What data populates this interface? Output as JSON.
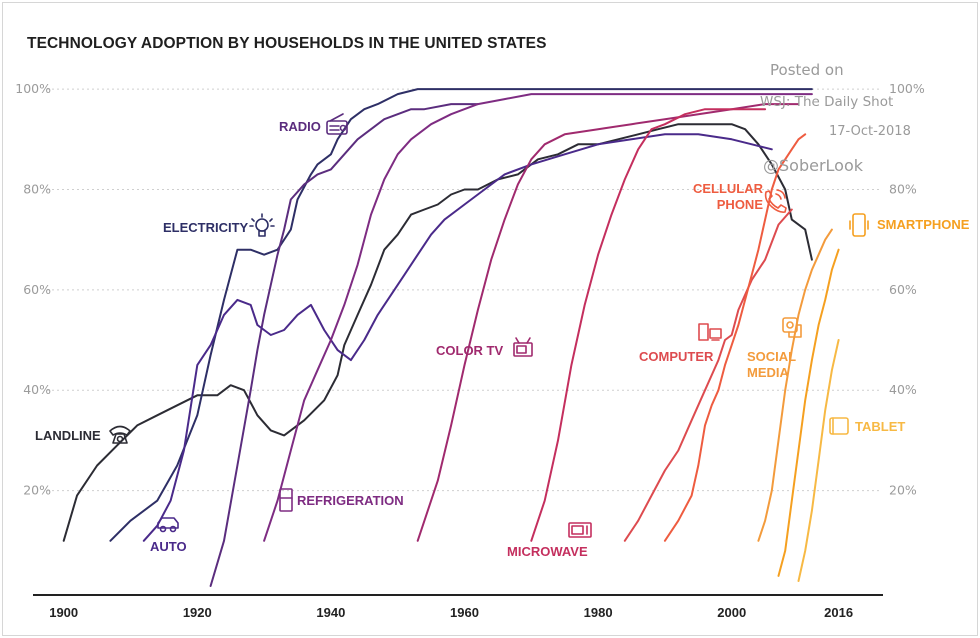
{
  "chart_data": {
    "type": "line",
    "title": "TECHNOLOGY ADOPTION BY HOUSEHOLDS IN THE UNITED STATES",
    "xlabel": "",
    "ylabel": "",
    "xlim": [
      1899,
      2021
    ],
    "ylim": [
      0,
      104
    ],
    "grid": true,
    "legend": "none",
    "x_ticks": [
      {
        "value": 1900,
        "label": "1900"
      },
      {
        "value": 1920,
        "label": "1920"
      },
      {
        "value": 1940,
        "label": "1940"
      },
      {
        "value": 1960,
        "label": "1960"
      },
      {
        "value": 1980,
        "label": "1980"
      },
      {
        "value": 2000,
        "label": "2000"
      },
      {
        "value": 2016,
        "label": "2016"
      }
    ],
    "y_ticks_left": [
      {
        "value": 20,
        "label": "20%"
      },
      {
        "value": 40,
        "label": "40%"
      },
      {
        "value": 60,
        "label": "60%"
      },
      {
        "value": 80,
        "label": "80%"
      },
      {
        "value": 100,
        "label": "100%"
      }
    ],
    "y_ticks_right": [
      {
        "value": 20,
        "label": "20%"
      },
      {
        "value": 40,
        "label": "40%"
      },
      {
        "value": 60,
        "label": "60%"
      },
      {
        "value": 80,
        "label": "80%"
      },
      {
        "value": 100,
        "label": "100%"
      }
    ],
    "series": [
      {
        "name": "LANDLINE",
        "color": "#2c2c34",
        "icon": "telephone-icon",
        "points": [
          [
            1900,
            10
          ],
          [
            1902,
            19
          ],
          [
            1905,
            25
          ],
          [
            1908,
            29
          ],
          [
            1911,
            33
          ],
          [
            1914,
            35
          ],
          [
            1917,
            37
          ],
          [
            1920,
            39
          ],
          [
            1923,
            39
          ],
          [
            1925,
            41
          ],
          [
            1927,
            40
          ],
          [
            1929,
            35
          ],
          [
            1931,
            32
          ],
          [
            1933,
            31
          ],
          [
            1936,
            34
          ],
          [
            1939,
            38
          ],
          [
            1941,
            43
          ],
          [
            1942,
            49
          ],
          [
            1944,
            55
          ],
          [
            1946,
            61
          ],
          [
            1948,
            68
          ],
          [
            1950,
            71
          ],
          [
            1952,
            75
          ],
          [
            1954,
            76
          ],
          [
            1956,
            77
          ],
          [
            1958,
            79
          ],
          [
            1960,
            80
          ],
          [
            1962,
            80
          ],
          [
            1965,
            82
          ],
          [
            1968,
            83
          ],
          [
            1971,
            86
          ],
          [
            1974,
            87
          ],
          [
            1977,
            89
          ],
          [
            1980,
            89
          ],
          [
            1983,
            90
          ],
          [
            1986,
            91
          ],
          [
            1989,
            92
          ],
          [
            1992,
            93
          ],
          [
            1995,
            93
          ],
          [
            1998,
            93
          ],
          [
            2000,
            93
          ],
          [
            2002,
            92
          ],
          [
            2004,
            89
          ],
          [
            2006,
            85
          ],
          [
            2008,
            80
          ],
          [
            2009,
            74
          ],
          [
            2011,
            72
          ],
          [
            2012,
            66
          ]
        ]
      },
      {
        "name": "ELECTRICITY",
        "color": "#2e2f66",
        "icon": "lightbulb-icon",
        "points": [
          [
            1907,
            10
          ],
          [
            1910,
            14
          ],
          [
            1914,
            18
          ],
          [
            1917,
            25
          ],
          [
            1920,
            35
          ],
          [
            1922,
            47
          ],
          [
            1924,
            58
          ],
          [
            1925,
            63
          ],
          [
            1926,
            68
          ],
          [
            1928,
            68
          ],
          [
            1930,
            67
          ],
          [
            1932,
            68
          ],
          [
            1934,
            72
          ],
          [
            1935,
            78
          ],
          [
            1937,
            83
          ],
          [
            1938,
            85
          ],
          [
            1940,
            87
          ],
          [
            1941,
            90
          ],
          [
            1943,
            94
          ],
          [
            1945,
            96
          ],
          [
            1947,
            97
          ],
          [
            1950,
            99
          ],
          [
            1953,
            100
          ],
          [
            2012,
            100
          ]
        ]
      },
      {
        "name": "RADIO",
        "color": "#5b2d7e",
        "icon": "radio-icon",
        "points": [
          [
            1922,
            1
          ],
          [
            1924,
            10
          ],
          [
            1926,
            25
          ],
          [
            1928,
            40
          ],
          [
            1929,
            48
          ],
          [
            1930,
            55
          ],
          [
            1931,
            61
          ],
          [
            1932,
            67
          ],
          [
            1933,
            72
          ],
          [
            1934,
            78
          ],
          [
            1936,
            81
          ],
          [
            1938,
            83
          ],
          [
            1940,
            84
          ],
          [
            1942,
            87
          ],
          [
            1944,
            90
          ],
          [
            1946,
            92
          ],
          [
            1948,
            94
          ],
          [
            1950,
            95
          ],
          [
            1952,
            96
          ],
          [
            1954,
            96
          ],
          [
            1958,
            97
          ],
          [
            1962,
            97
          ]
        ]
      },
      {
        "name": "AUTO",
        "color": "#4a2a8a",
        "icon": "car-icon",
        "points": [
          [
            1912,
            10
          ],
          [
            1914,
            13
          ],
          [
            1916,
            18
          ],
          [
            1918,
            28
          ],
          [
            1920,
            45
          ],
          [
            1922,
            49
          ],
          [
            1924,
            55
          ],
          [
            1926,
            58
          ],
          [
            1928,
            57
          ],
          [
            1929,
            53
          ],
          [
            1931,
            51
          ],
          [
            1933,
            52
          ],
          [
            1935,
            55
          ],
          [
            1937,
            57
          ],
          [
            1939,
            52
          ],
          [
            1941,
            48
          ],
          [
            1943,
            46
          ],
          [
            1945,
            50
          ],
          [
            1947,
            55
          ],
          [
            1949,
            59
          ],
          [
            1951,
            63
          ],
          [
            1953,
            67
          ],
          [
            1955,
            71
          ],
          [
            1957,
            74
          ],
          [
            1960,
            77
          ],
          [
            1963,
            80
          ],
          [
            1966,
            83
          ],
          [
            1970,
            85
          ],
          [
            1975,
            87
          ],
          [
            1980,
            89
          ],
          [
            1985,
            90
          ],
          [
            1990,
            91
          ],
          [
            1995,
            91
          ],
          [
            2000,
            90
          ],
          [
            2003,
            89
          ],
          [
            2006,
            88
          ]
        ]
      },
      {
        "name": "REFRIGERATION",
        "color": "#7e2c82",
        "icon": "refrigerator-icon",
        "points": [
          [
            1930,
            10
          ],
          [
            1932,
            18
          ],
          [
            1934,
            28
          ],
          [
            1936,
            38
          ],
          [
            1938,
            44
          ],
          [
            1940,
            50
          ],
          [
            1942,
            57
          ],
          [
            1944,
            65
          ],
          [
            1946,
            75
          ],
          [
            1948,
            82
          ],
          [
            1950,
            87
          ],
          [
            1952,
            90
          ],
          [
            1955,
            93
          ],
          [
            1958,
            95
          ],
          [
            1962,
            97
          ],
          [
            1966,
            98
          ],
          [
            1970,
            99
          ],
          [
            1975,
            99
          ],
          [
            1980,
            99
          ],
          [
            1990,
            99
          ],
          [
            2000,
            99
          ],
          [
            2012,
            99
          ]
        ]
      },
      {
        "name": "COLOR TV",
        "color": "#a02a6e",
        "icon": "tv-icon",
        "points": [
          [
            1953,
            10
          ],
          [
            1956,
            22
          ],
          [
            1958,
            33
          ],
          [
            1960,
            45
          ],
          [
            1962,
            56
          ],
          [
            1964,
            66
          ],
          [
            1966,
            74
          ],
          [
            1968,
            81
          ],
          [
            1970,
            86
          ],
          [
            1972,
            89
          ],
          [
            1975,
            91
          ],
          [
            1980,
            92
          ],
          [
            1985,
            93
          ],
          [
            1990,
            94
          ],
          [
            1995,
            95
          ],
          [
            2000,
            96
          ],
          [
            2005,
            97
          ],
          [
            2010,
            97
          ]
        ]
      },
      {
        "name": "MICROWAVE",
        "color": "#c42f5e",
        "icon": "microwave-icon",
        "points": [
          [
            1970,
            10
          ],
          [
            1972,
            18
          ],
          [
            1974,
            30
          ],
          [
            1976,
            45
          ],
          [
            1978,
            57
          ],
          [
            1980,
            67
          ],
          [
            1982,
            75
          ],
          [
            1984,
            82
          ],
          [
            1986,
            88
          ],
          [
            1988,
            92
          ],
          [
            1990,
            93
          ],
          [
            1993,
            95
          ],
          [
            1996,
            96
          ],
          [
            2000,
            96
          ],
          [
            2005,
            96
          ]
        ]
      },
      {
        "name": "COMPUTER",
        "color": "#dd4b4f",
        "icon": "computer-icon",
        "points": [
          [
            1984,
            10
          ],
          [
            1986,
            14
          ],
          [
            1988,
            19
          ],
          [
            1990,
            24
          ],
          [
            1992,
            28
          ],
          [
            1994,
            34
          ],
          [
            1996,
            40
          ],
          [
            1998,
            46
          ],
          [
            1999,
            50
          ],
          [
            2000,
            51
          ],
          [
            2001,
            56
          ],
          [
            2003,
            62
          ],
          [
            2005,
            66
          ],
          [
            2007,
            73
          ],
          [
            2009,
            76
          ]
        ]
      },
      {
        "name": "CELLULAR PHONE",
        "color": "#ee5c40",
        "icon": "cellphone-icon",
        "points": [
          [
            1990,
            10
          ],
          [
            1992,
            14
          ],
          [
            1994,
            19
          ],
          [
            1995,
            25
          ],
          [
            1996,
            33
          ],
          [
            1997,
            37
          ],
          [
            1998,
            40
          ],
          [
            1999,
            45
          ],
          [
            2000,
            49
          ],
          [
            2001,
            53
          ],
          [
            2002,
            58
          ],
          [
            2003,
            63
          ],
          [
            2004,
            68
          ],
          [
            2005,
            74
          ],
          [
            2006,
            80
          ],
          [
            2007,
            84
          ],
          [
            2008,
            86
          ],
          [
            2009,
            88
          ],
          [
            2010,
            90
          ],
          [
            2011,
            91
          ]
        ]
      },
      {
        "name": "SOCIAL MEDIA",
        "color": "#f39b3c",
        "icon": "chat-icon",
        "points": [
          [
            2004,
            10
          ],
          [
            2005,
            14
          ],
          [
            2006,
            20
          ],
          [
            2007,
            30
          ],
          [
            2008,
            40
          ],
          [
            2009,
            48
          ],
          [
            2010,
            55
          ],
          [
            2011,
            60
          ],
          [
            2012,
            64
          ],
          [
            2013,
            67
          ],
          [
            2014,
            70
          ],
          [
            2015,
            72
          ]
        ]
      },
      {
        "name": "SMARTPHONE",
        "color": "#f5a020",
        "icon": "smartphone-icon",
        "points": [
          [
            2007,
            3
          ],
          [
            2008,
            8
          ],
          [
            2009,
            18
          ],
          [
            2010,
            28
          ],
          [
            2011,
            38
          ],
          [
            2012,
            46
          ],
          [
            2013,
            53
          ],
          [
            2014,
            58
          ],
          [
            2015,
            64
          ],
          [
            2016,
            68
          ]
        ]
      },
      {
        "name": "TABLET",
        "color": "#f7b944",
        "icon": "tablet-icon",
        "points": [
          [
            2010,
            2
          ],
          [
            2011,
            8
          ],
          [
            2012,
            16
          ],
          [
            2013,
            26
          ],
          [
            2014,
            36
          ],
          [
            2015,
            44
          ],
          [
            2016,
            50
          ]
        ]
      }
    ]
  },
  "watermark": {
    "line1": "Posted on",
    "line2": "WSJ: The Daily Shot",
    "line3": "17-Oct-2018",
    "line4": "@SoberLook"
  }
}
